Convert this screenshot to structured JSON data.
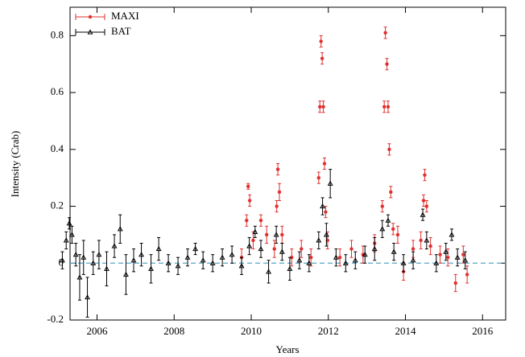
{
  "chart_data": {
    "type": "errorbar-scatter",
    "x_label": "Years",
    "y_label": "Intensity (Crab)",
    "xlim": [
      2005.3,
      2016.6
    ],
    "xticks": [
      2006,
      2008,
      2010,
      2012,
      2014,
      2016
    ],
    "ylim": [
      -0.2,
      0.9
    ],
    "yticks": [
      -0.2,
      0,
      0.2,
      0.4,
      0.6,
      0.8
    ],
    "reference_line": {
      "value": 0,
      "color": "#5aa6c8"
    },
    "legend": "upper-left",
    "series": [
      {
        "name": "MAXI",
        "color": "#e0302f",
        "marker": "circle",
        "x": [
          2009.75,
          2009.88,
          2009.92,
          2009.96,
          2010.05,
          2010.25,
          2010.4,
          2010.6,
          2010.66,
          2010.69,
          2010.73,
          2010.8,
          2011.05,
          2011.3,
          2011.55,
          2011.75,
          2011.78,
          2011.81,
          2011.84,
          2011.87,
          2011.9,
          2011.93,
          2011.98,
          2012.3,
          2012.6,
          2012.9,
          2013.2,
          2013.4,
          2013.45,
          2013.48,
          2013.52,
          2013.55,
          2013.58,
          2013.62,
          2013.68,
          2013.8,
          2013.95,
          2014.2,
          2014.4,
          2014.47,
          2014.5,
          2014.55,
          2014.65,
          2014.9,
          2015.1,
          2015.3,
          2015.5,
          2015.6
        ],
        "values": [
          0.02,
          0.15,
          0.27,
          0.22,
          0.08,
          0.15,
          0.1,
          0.05,
          0.2,
          0.33,
          0.25,
          0.1,
          0.02,
          0.05,
          0.02,
          0.3,
          0.55,
          0.78,
          0.72,
          0.55,
          0.35,
          0.18,
          0.08,
          0.02,
          0.05,
          0.03,
          0.07,
          0.2,
          0.55,
          0.81,
          0.7,
          0.55,
          0.4,
          0.25,
          0.12,
          0.1,
          -0.03,
          0.05,
          0.08,
          0.22,
          0.31,
          0.2,
          0.06,
          0.03,
          0.02,
          -0.07,
          0.03,
          -0.04
        ],
        "errors": [
          0.03,
          0.02,
          0.01,
          0.02,
          0.03,
          0.02,
          0.03,
          0.03,
          0.02,
          0.02,
          0.03,
          0.03,
          0.03,
          0.03,
          0.03,
          0.02,
          0.02,
          0.02,
          0.02,
          0.02,
          0.02,
          0.02,
          0.03,
          0.03,
          0.03,
          0.03,
          0.03,
          0.02,
          0.02,
          0.02,
          0.02,
          0.02,
          0.02,
          0.02,
          0.02,
          0.03,
          0.03,
          0.03,
          0.03,
          0.02,
          0.02,
          0.02,
          0.03,
          0.03,
          0.03,
          0.03,
          0.03,
          0.03
        ]
      },
      {
        "name": "BAT",
        "color": "#000000",
        "marker": "triangle",
        "x": [
          2005.1,
          2005.2,
          2005.28,
          2005.35,
          2005.45,
          2005.55,
          2005.65,
          2005.75,
          2005.9,
          2006.05,
          2006.25,
          2006.45,
          2006.6,
          2006.75,
          2006.95,
          2007.15,
          2007.4,
          2007.6,
          2007.85,
          2008.1,
          2008.35,
          2008.55,
          2008.75,
          2009.0,
          2009.25,
          2009.5,
          2009.75,
          2009.95,
          2010.1,
          2010.25,
          2010.45,
          2010.65,
          2010.8,
          2011.0,
          2011.25,
          2011.5,
          2011.75,
          2011.85,
          2011.95,
          2012.05,
          2012.2,
          2012.45,
          2012.7,
          2012.95,
          2013.2,
          2013.4,
          2013.55,
          2013.7,
          2013.95,
          2014.2,
          2014.45,
          2014.55,
          2014.8,
          2015.05,
          2015.2,
          2015.35,
          2015.55
        ],
        "values": [
          0.01,
          0.08,
          0.14,
          0.1,
          0.03,
          -0.05,
          0.02,
          -0.12,
          0,
          0.03,
          -0.02,
          0.06,
          0.12,
          -0.04,
          0.01,
          0.03,
          -0.02,
          0.05,
          0,
          -0.01,
          0.02,
          0.05,
          0.01,
          0,
          0.02,
          0.03,
          -0.01,
          0.06,
          0.11,
          0.05,
          -0.03,
          0.1,
          0.04,
          -0.02,
          0.01,
          0,
          0.08,
          0.2,
          0.1,
          0.28,
          0.02,
          0,
          0.01,
          0.03,
          0.05,
          0.12,
          0.15,
          0.04,
          0,
          0.01,
          0.17,
          0.08,
          0,
          0.04,
          0.1,
          0.02,
          0.01
        ],
        "errors": [
          0.03,
          0.03,
          0.02,
          0.03,
          0.04,
          0.08,
          0.06,
          0.07,
          0.04,
          0.05,
          0.06,
          0.04,
          0.05,
          0.07,
          0.04,
          0.04,
          0.05,
          0.04,
          0.03,
          0.03,
          0.03,
          0.02,
          0.03,
          0.03,
          0.03,
          0.03,
          0.03,
          0.03,
          0.02,
          0.03,
          0.04,
          0.03,
          0.03,
          0.04,
          0.03,
          0.03,
          0.03,
          0.03,
          0.04,
          0.05,
          0.03,
          0.03,
          0.03,
          0.03,
          0.04,
          0.03,
          0.02,
          0.03,
          0.03,
          0.03,
          0.02,
          0.03,
          0.03,
          0.03,
          0.02,
          0.03,
          0.03
        ]
      }
    ]
  }
}
